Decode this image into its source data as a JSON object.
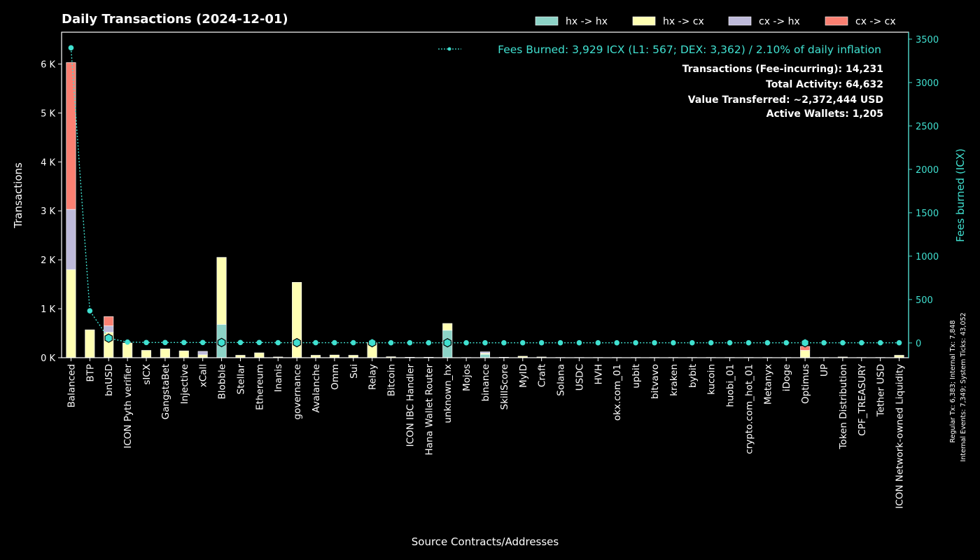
{
  "chart_data": {
    "type": "bar",
    "title": "Daily Transactions (2024-12-01)",
    "xlabel": "Source Contracts/Addresses",
    "ylabel": "Transactions",
    "y2label": "Fees burned (ICX)",
    "ylim": [
      0,
      6650
    ],
    "y2lim": [
      -170,
      3580
    ],
    "yticks": [
      0,
      1000,
      2000,
      3000,
      4000,
      5000,
      6000
    ],
    "yticklabels": [
      "0 K",
      "1 K",
      "2 K",
      "3 K",
      "4 K",
      "5 K",
      "6 K"
    ],
    "y2ticks": [
      0,
      500,
      1000,
      1500,
      2000,
      2500,
      3000,
      3500
    ],
    "grid": false,
    "legend_position": "top-right",
    "categories": [
      "Balanced",
      "BTP",
      "bnUSD",
      "ICON Pyth verifier",
      "sICX",
      "GangstaBet",
      "Injective",
      "xCall",
      "Blobble",
      "Stellar",
      "Ethereum",
      "Inanis",
      "governance",
      "Avalanche",
      "Omm",
      "Sui",
      "Relay",
      "Bitcoin",
      "ICON IBC Handler",
      "Hana Wallet Router",
      "unknown_hx",
      "Mojos",
      "binance",
      "SkillScore",
      "MyID",
      "Craft",
      "Solana",
      "USDC",
      "HVH",
      "okx.com_01",
      "upbit",
      "bitvavo",
      "kraken",
      "bybit",
      "kucoin",
      "huobi_01",
      "crypto.com_hot_01",
      "Metanyx",
      "iDoge",
      "Optimus",
      "UP",
      "Token Distribution",
      "CPF_TREASURY",
      "Tether USD",
      "ICON Network-owned Liquidity"
    ],
    "series": [
      {
        "name": "hx -> hx",
        "color": "#8dd3c7",
        "values": [
          0,
          0,
          0,
          0,
          0,
          0,
          0,
          0,
          680,
          0,
          0,
          0,
          0,
          0,
          0,
          0,
          0,
          0,
          0,
          0,
          560,
          0,
          70,
          0,
          0,
          0,
          0,
          0,
          0,
          0,
          0,
          0,
          0,
          0,
          0,
          0,
          0,
          0,
          0,
          0,
          0,
          0,
          0,
          0,
          0
        ]
      },
      {
        "name": "hx -> cx",
        "color": "#ffffb3",
        "values": [
          1800,
          570,
          520,
          300,
          150,
          180,
          140,
          60,
          1370,
          50,
          100,
          15,
          1540,
          50,
          55,
          50,
          310,
          20,
          10,
          10,
          140,
          5,
          20,
          10,
          30,
          15,
          5,
          5,
          5,
          5,
          5,
          5,
          5,
          5,
          5,
          5,
          5,
          5,
          5,
          150,
          5,
          15,
          5,
          5,
          50
        ]
      },
      {
        "name": "cx -> hx",
        "color": "#bebada",
        "values": [
          1230,
          0,
          130,
          0,
          0,
          0,
          0,
          70,
          0,
          0,
          0,
          0,
          0,
          0,
          0,
          0,
          0,
          0,
          0,
          0,
          0,
          0,
          30,
          0,
          0,
          0,
          0,
          0,
          0,
          0,
          0,
          0,
          0,
          0,
          0,
          0,
          0,
          0,
          0,
          0,
          0,
          0,
          0,
          0,
          0
        ]
      },
      {
        "name": "cx -> cx",
        "color": "#fb8072",
        "values": [
          3000,
          0,
          190,
          0,
          0,
          0,
          0,
          0,
          0,
          0,
          0,
          0,
          0,
          0,
          0,
          0,
          0,
          0,
          0,
          0,
          0,
          0,
          0,
          0,
          0,
          0,
          0,
          0,
          0,
          0,
          0,
          0,
          0,
          0,
          0,
          0,
          0,
          0,
          0,
          80,
          0,
          0,
          0,
          0,
          0
        ]
      }
    ],
    "fees": {
      "name": "Fees Burned: 3,929 ICX (L1: 567; DEX: 3,362) / 2.10% of daily inflation",
      "color": "#40e0d0",
      "values": [
        3400,
        370,
        55,
        10,
        5,
        5,
        5,
        5,
        5,
        5,
        5,
        3,
        3,
        3,
        3,
        3,
        3,
        2,
        2,
        2,
        2,
        2,
        2,
        2,
        2,
        2,
        2,
        2,
        2,
        2,
        2,
        2,
        2,
        2,
        2,
        2,
        2,
        2,
        2,
        2,
        2,
        2,
        2,
        2,
        2
      ],
      "hex_markers": [
        2,
        8,
        12,
        16,
        20,
        39
      ]
    },
    "stats": [
      "Transactions (Fee-incurring): 14,231",
      "Total Activity: 64,632",
      "Value Transferred: ~2,372,444 USD",
      "Active Wallets: 1,205"
    ],
    "side_note": [
      "Regular Tx: 6,383; Internal Tx: 7,848",
      "Internal Events: 7,349; System Ticks: 43,052"
    ]
  }
}
